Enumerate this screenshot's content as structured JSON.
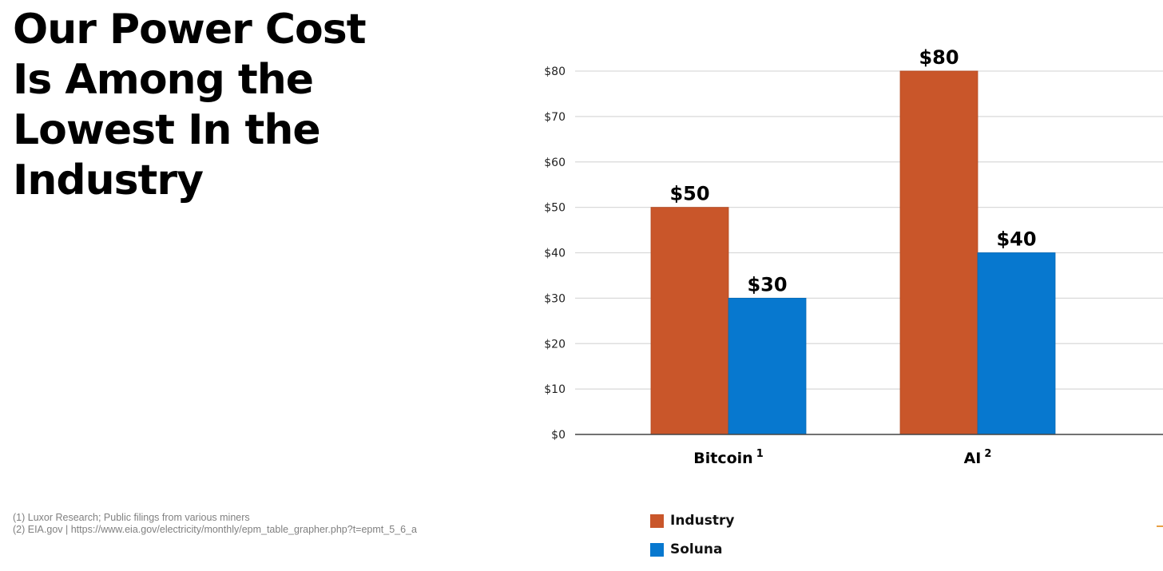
{
  "title_lines": [
    "Our Power Cost",
    "Is Among the",
    "Lowest In the",
    "Industry"
  ],
  "footnotes": [
    "(1) Luxor Research; Public filings from various miners",
    "(2) EIA.gov | https://www.eia.gov/electricity/monthly/epm_table_grapher.php?t=epmt_5_6_a"
  ],
  "colors": {
    "industry": "#c9562a",
    "soluna": "#0778cf",
    "grid": "#d9d9d9",
    "axis": "#444444",
    "accent_mark": "#e8a045"
  },
  "chart_data": {
    "type": "bar",
    "title": "",
    "xlabel": "",
    "ylabel": "",
    "ylim": [
      0,
      80
    ],
    "yticks": [
      0,
      10,
      20,
      30,
      40,
      50,
      60,
      70,
      80
    ],
    "ytick_labels": [
      "$0",
      "$10",
      "$20",
      "$30",
      "$40",
      "$50",
      "$60",
      "$70",
      "$80"
    ],
    "grid": true,
    "categories": [
      {
        "label": "Bitcoin",
        "superscript": "1"
      },
      {
        "label": "AI",
        "superscript": "2"
      }
    ],
    "series": [
      {
        "name": "Industry",
        "values": [
          50,
          80
        ],
        "data_labels": [
          "$50",
          "$80"
        ],
        "color": "#c9562a"
      },
      {
        "name": "Soluna",
        "values": [
          30,
          40
        ],
        "data_labels": [
          "$30",
          "$40"
        ],
        "color": "#0778cf"
      }
    ],
    "legend": [
      "Industry",
      "Soluna"
    ],
    "legend_position": "bottom"
  }
}
